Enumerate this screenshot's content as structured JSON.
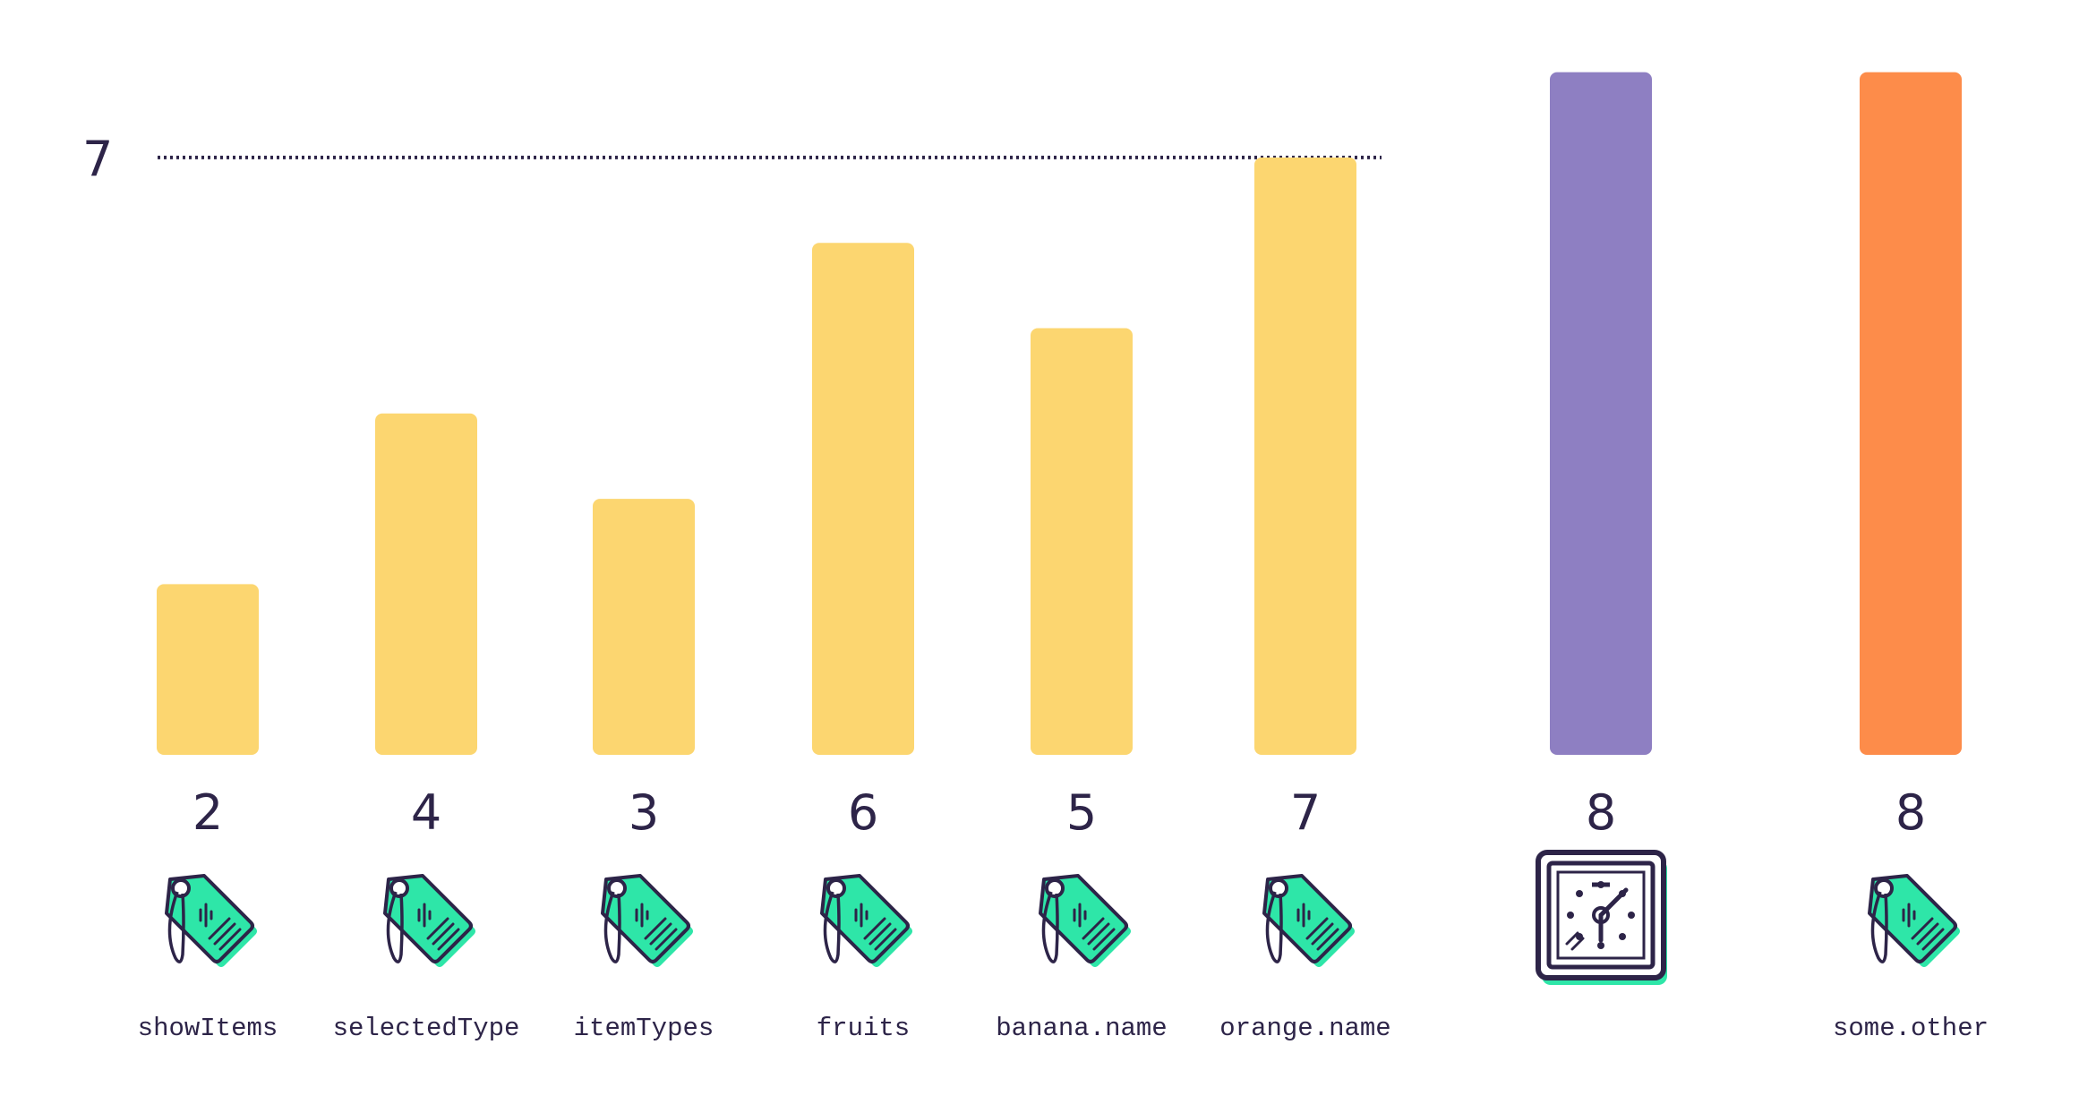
{
  "chart_data": {
    "type": "bar",
    "title": "",
    "xlabel": "",
    "ylabel": "",
    "ylim": [
      0,
      8
    ],
    "grid": false,
    "legend": "none",
    "reference_line": {
      "value": 7,
      "label": "7",
      "style": "dotted"
    },
    "categories": [
      "showItems",
      "selectedType",
      "itemTypes",
      "fruits",
      "banana.name",
      "orange.name",
      "",
      "some.other"
    ],
    "values": [
      2,
      4,
      3,
      6,
      5,
      7,
      8,
      8
    ],
    "value_labels": [
      "2",
      "4",
      "3",
      "6",
      "5",
      "7",
      "8",
      "8"
    ],
    "icons": [
      "price-tag-icon",
      "price-tag-icon",
      "price-tag-icon",
      "price-tag-icon",
      "price-tag-icon",
      "price-tag-icon",
      "clock-icon",
      "price-tag-icon"
    ],
    "colors": [
      "#fcd670",
      "#fcd670",
      "#fcd670",
      "#fcd670",
      "#fcd670",
      "#fcd670",
      "#8e7fc2",
      "#fd8c4a"
    ]
  },
  "colors": {
    "text": "#2d2448",
    "tag_fill": "#2ee6a8",
    "outline": "#2d2448"
  }
}
